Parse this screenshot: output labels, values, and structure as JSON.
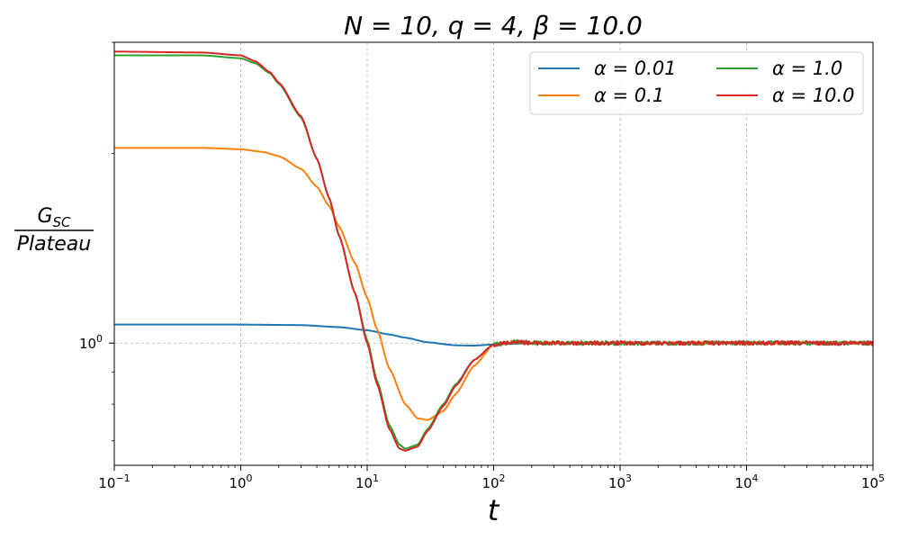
{
  "chart_data": {
    "type": "line",
    "title": "N = 10, q = 4, β = 10.0",
    "xlabel": "t",
    "ylabel_numerator": "G_SC",
    "ylabel_denominator": "Plateau",
    "xscale": "log",
    "yscale": "log",
    "xlim": [
      0.1,
      100000
    ],
    "ylim": [
      0.64,
      3.0
    ],
    "x_ticks": [
      {
        "base": "10",
        "exp": "−1",
        "value": 0.1
      },
      {
        "base": "10",
        "exp": "0",
        "value": 1
      },
      {
        "base": "10",
        "exp": "1",
        "value": 10
      },
      {
        "base": "10",
        "exp": "2",
        "value": 100
      },
      {
        "base": "10",
        "exp": "3",
        "value": 1000
      },
      {
        "base": "10",
        "exp": "4",
        "value": 10000
      },
      {
        "base": "10",
        "exp": "5",
        "value": 100000
      }
    ],
    "y_ticks": [
      {
        "base": "10",
        "exp": "0",
        "value": 1
      }
    ],
    "grid": true,
    "legend_position": "top-right",
    "series": [
      {
        "name": "α = 0.01",
        "color": "#1f77b4",
        "points": [
          [
            0.1,
            1.07
          ],
          [
            1,
            1.07
          ],
          [
            3,
            1.068
          ],
          [
            6,
            1.06
          ],
          [
            10,
            1.048
          ],
          [
            15,
            1.032
          ],
          [
            20,
            1.02
          ],
          [
            30,
            1.003
          ],
          [
            50,
            0.992
          ],
          [
            70,
            0.991
          ],
          [
            100,
            0.995
          ],
          [
            200,
            1.0
          ],
          [
            1000,
            1.0
          ],
          [
            100000,
            1.0
          ]
        ]
      },
      {
        "name": "α = 0.1",
        "color": "#ff7f0e",
        "points": [
          [
            0.1,
            2.04
          ],
          [
            0.5,
            2.04
          ],
          [
            1,
            2.03
          ],
          [
            1.5,
            2.01
          ],
          [
            2,
            1.98
          ],
          [
            3,
            1.89
          ],
          [
            4,
            1.77
          ],
          [
            5,
            1.65
          ],
          [
            6,
            1.53
          ],
          [
            8,
            1.34
          ],
          [
            10,
            1.18
          ],
          [
            12,
            1.05
          ],
          [
            15,
            0.91
          ],
          [
            20,
            0.8
          ],
          [
            25,
            0.76
          ],
          [
            30,
            0.755
          ],
          [
            40,
            0.78
          ],
          [
            50,
            0.83
          ],
          [
            70,
            0.92
          ],
          [
            100,
            0.995
          ],
          [
            150,
            1.005
          ],
          [
            200,
            1.0
          ],
          [
            1000,
            1.0
          ],
          [
            100000,
            1.0
          ]
        ]
      },
      {
        "name": "α = 1.0",
        "color": "#2ca02c",
        "points": [
          [
            0.1,
            2.86
          ],
          [
            0.5,
            2.86
          ],
          [
            1,
            2.83
          ],
          [
            1.3,
            2.78
          ],
          [
            1.7,
            2.68
          ],
          [
            2,
            2.58
          ],
          [
            3,
            2.28
          ],
          [
            4,
            1.96
          ],
          [
            5,
            1.7
          ],
          [
            6,
            1.48
          ],
          [
            8,
            1.2
          ],
          [
            10,
            1.01
          ],
          [
            12,
            0.87
          ],
          [
            15,
            0.74
          ],
          [
            18,
            0.69
          ],
          [
            20,
            0.68
          ],
          [
            25,
            0.69
          ],
          [
            30,
            0.73
          ],
          [
            40,
            0.8
          ],
          [
            50,
            0.86
          ],
          [
            70,
            0.94
          ],
          [
            100,
            0.995
          ],
          [
            150,
            1.005
          ],
          [
            200,
            1.0
          ],
          [
            1000,
            1.0
          ],
          [
            100000,
            1.0
          ]
        ]
      },
      {
        "name": "α = 10.0",
        "color": "#d62728",
        "points": [
          [
            0.1,
            2.9
          ],
          [
            0.5,
            2.89
          ],
          [
            1,
            2.86
          ],
          [
            1.3,
            2.8
          ],
          [
            1.7,
            2.69
          ],
          [
            2,
            2.59
          ],
          [
            3,
            2.29
          ],
          [
            4,
            1.96
          ],
          [
            5,
            1.7
          ],
          [
            6,
            1.48
          ],
          [
            8,
            1.2
          ],
          [
            10,
            1.0
          ],
          [
            12,
            0.86
          ],
          [
            15,
            0.73
          ],
          [
            18,
            0.68
          ],
          [
            20,
            0.675
          ],
          [
            25,
            0.685
          ],
          [
            30,
            0.725
          ],
          [
            40,
            0.795
          ],
          [
            50,
            0.855
          ],
          [
            70,
            0.94
          ],
          [
            100,
            0.995
          ],
          [
            150,
            1.005
          ],
          [
            200,
            1.0
          ],
          [
            1000,
            1.0
          ],
          [
            100000,
            1.0
          ]
        ]
      }
    ]
  }
}
